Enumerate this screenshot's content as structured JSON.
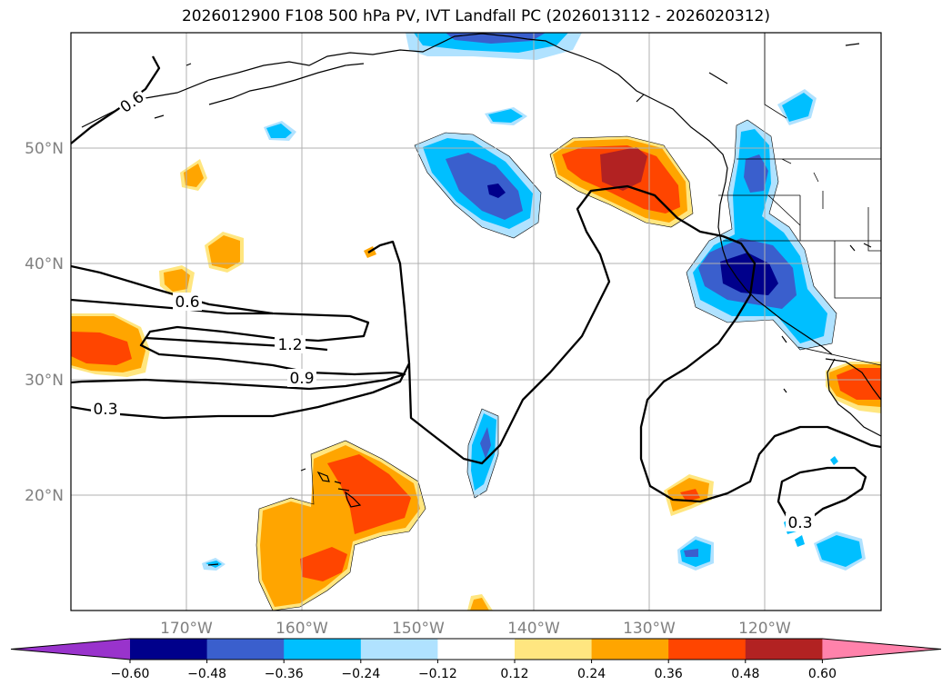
{
  "title": "2026012900 F108 500 hPa PV, IVT Landfall PC (2026013112 - 2026020312)",
  "axes": {
    "lon_labels": [
      "170°W",
      "160°W",
      "150°W",
      "140°W",
      "130°W",
      "120°W"
    ],
    "lat_labels": [
      "50°N",
      "40°N",
      "30°N",
      "20°N"
    ]
  },
  "colorbar": {
    "ticks": [
      "−0.60",
      "−0.48",
      "−0.36",
      "−0.24",
      "−0.12",
      "0.12",
      "0.24",
      "0.36",
      "0.48",
      "0.60"
    ],
    "colors": [
      "#9933cc",
      "#00008b",
      "#3a5fcd",
      "#00bfff",
      "#b0e2ff",
      "#ffffff",
      "#ffe680",
      "#ffa500",
      "#ff4500",
      "#b22222",
      "#ff82ab"
    ]
  },
  "contour_labels": [
    "0.6",
    "0.6",
    "1.2",
    "0.9",
    "0.3",
    "0.3"
  ]
}
